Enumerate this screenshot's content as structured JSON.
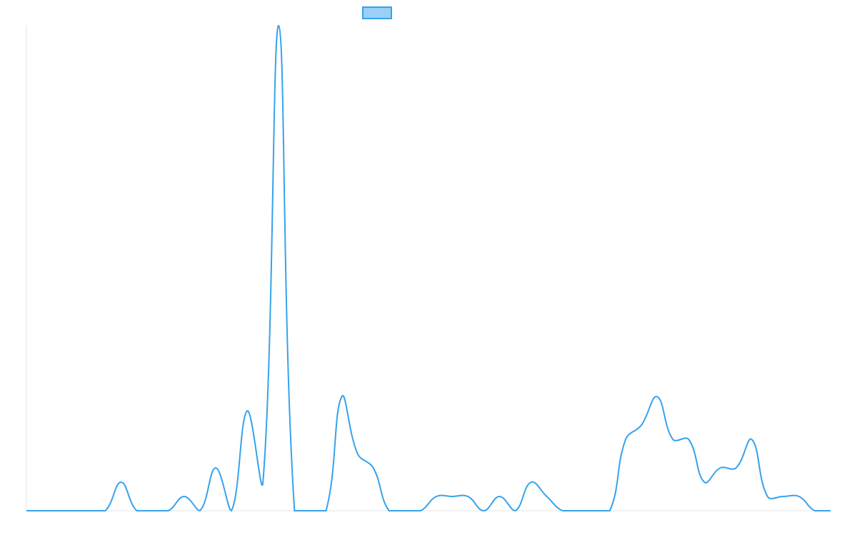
{
  "chart_data": {
    "type": "line",
    "series": [
      {
        "color": "#36a2eb",
        "values": [
          0,
          0,
          0,
          0,
          0,
          0,
          2,
          0,
          0,
          0,
          1,
          0,
          3,
          0,
          7,
          2,
          34,
          0,
          0,
          0,
          8,
          4,
          3,
          0,
          0,
          0,
          1,
          1,
          1,
          0,
          1,
          0,
          2,
          1,
          0,
          0,
          0,
          0,
          5,
          6,
          8,
          5,
          5,
          2,
          3,
          3,
          5,
          1,
          1,
          1,
          0,
          0
        ]
      }
    ],
    "ylim": [
      0,
      34
    ],
    "legend": "top"
  }
}
